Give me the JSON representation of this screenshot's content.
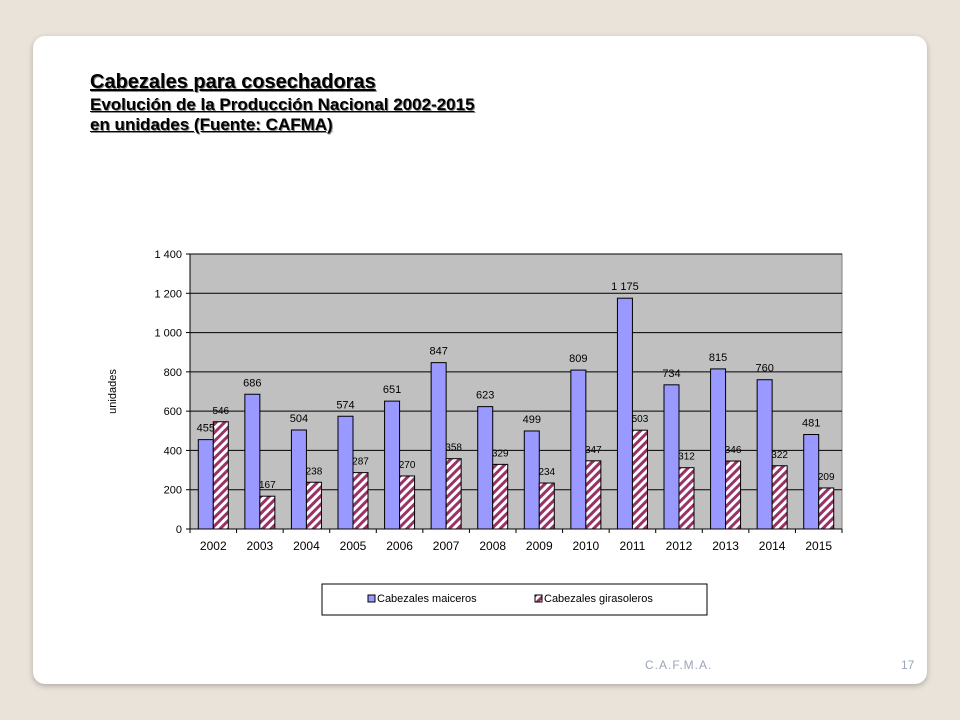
{
  "slide": {
    "title": "Cabezales para cosechadoras",
    "subtitle": "Evolución de la Producción Nacional 2002-2015",
    "subtitle2": "en unidades (Fuente: CAFMA)",
    "footer_org": "C.A.F.M.A.",
    "page_number": "17"
  },
  "chart_data": {
    "type": "bar",
    "categories": [
      "2002",
      "2003",
      "2004",
      "2005",
      "2006",
      "2007",
      "2008",
      "2009",
      "2010",
      "2011",
      "2012",
      "2013",
      "2014",
      "2015"
    ],
    "series": [
      {
        "name": "Cabezales maiceros",
        "values": [
          455,
          686,
          504,
          574,
          651,
          847,
          623,
          499,
          809,
          1175,
          734,
          815,
          760,
          481
        ],
        "labels": [
          "455",
          "686",
          "504",
          "574",
          "651",
          "847",
          "623",
          "499",
          "809",
          "1 175",
          "734",
          "815",
          "760",
          "481"
        ],
        "color": "#9999ff"
      },
      {
        "name": "Cabezales girasoleros",
        "values": [
          546,
          167,
          238,
          287,
          270,
          358,
          329,
          234,
          347,
          503,
          312,
          346,
          322,
          209
        ],
        "labels": [
          "546",
          "167",
          "238",
          "287",
          "270",
          "358",
          "329",
          "234",
          "347",
          "503",
          "312",
          "346",
          "322",
          "209"
        ],
        "color": "#993366",
        "pattern": "diagonal-hatch"
      }
    ],
    "ylabel": "unidades",
    "ylim": [
      0,
      1400
    ],
    "yticks": [
      0,
      200,
      400,
      600,
      800,
      1000,
      1200,
      1400
    ],
    "ytick_labels": [
      "0",
      "200",
      "400",
      "600",
      "800",
      "1 000",
      "1 200",
      "1 400"
    ],
    "grid": true,
    "plot_background": "#c0c0c0",
    "legend_position": "bottom"
  }
}
